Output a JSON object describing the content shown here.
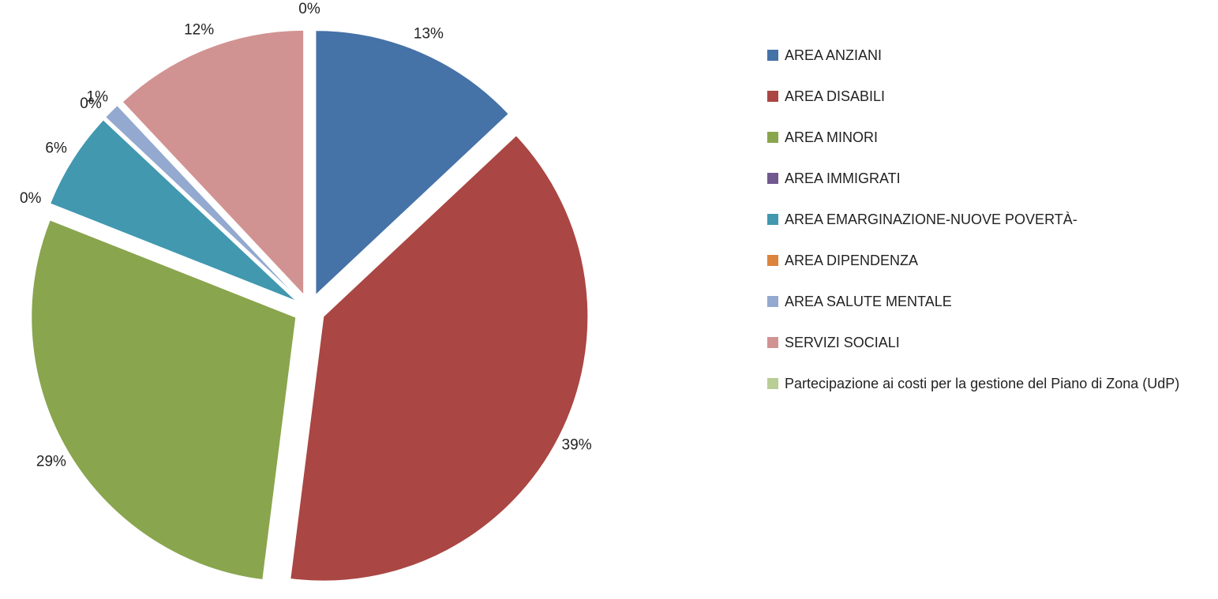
{
  "chart_data": {
    "type": "pie",
    "categories": [
      "AREA ANZIANI",
      "AREA DISABILI",
      "AREA MINORI",
      "AREA IMMIGRATI",
      "AREA EMARGINAZIONE-NUOVE POVERTÀ-",
      "AREA DIPENDENZA",
      "AREA SALUTE MENTALE",
      "SERVIZI SOCIALI",
      "Partecipazione ai costi per la gestione del Piano di Zona (UdP)"
    ],
    "values": [
      13,
      39,
      29,
      0,
      6,
      0,
      1,
      12,
      0
    ],
    "colors": [
      "#4572a7",
      "#aa4643",
      "#89a54e",
      "#71588f",
      "#4198af",
      "#db843d",
      "#93a9cf",
      "#d19392",
      "#b9cd96"
    ],
    "legend": "right"
  }
}
